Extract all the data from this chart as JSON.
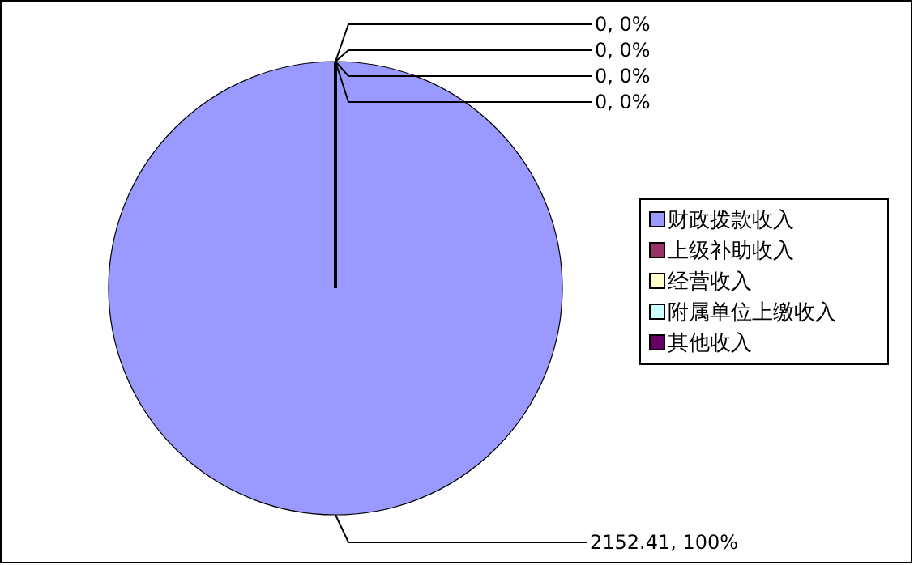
{
  "chart_data": {
    "type": "pie",
    "categories": [
      "财政拨款收入",
      "上级补助收入",
      "经营收入",
      "附属单位上缴收入",
      "其他收入"
    ],
    "values": [
      2152.41,
      0,
      0,
      0,
      0
    ],
    "colors": [
      "#9999ff",
      "#993366",
      "#ffffcc",
      "#ccffff",
      "#660066"
    ],
    "value_labels": [
      "2152.41, 100%",
      "0, 0%",
      "0, 0%",
      "0, 0%",
      "0, 0%"
    ],
    "legend": "right"
  }
}
